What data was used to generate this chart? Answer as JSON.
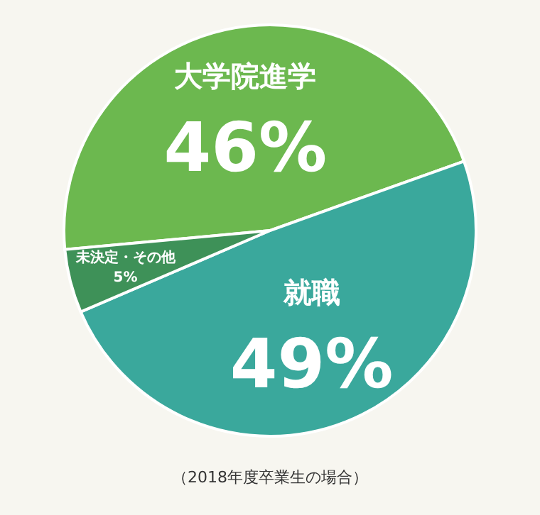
{
  "chart_data": {
    "type": "pie",
    "categories": [
      "大学院進学",
      "就職",
      "未決定・その他"
    ],
    "values": [
      46,
      49,
      5
    ],
    "colors": [
      "#6cb84f",
      "#3aa89c",
      "#3e9158"
    ],
    "value_labels": [
      "46%",
      "49%",
      "5%"
    ],
    "annotations": [
      "（2018年度卒業生の場合）"
    ]
  }
}
